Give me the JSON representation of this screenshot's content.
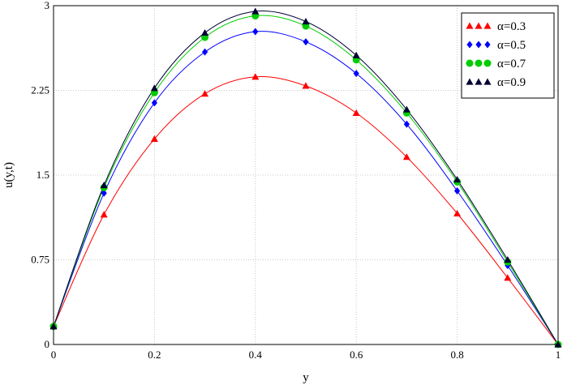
{
  "chart_data": {
    "type": "line",
    "xlabel": "y",
    "ylabel": "u(y,t)",
    "xlim": [
      0,
      1
    ],
    "ylim": [
      0,
      3
    ],
    "x_ticks": [
      "0",
      "0.2",
      "0.4",
      "0.6",
      "0.8",
      "1"
    ],
    "x_tick_values": [
      0,
      0.2,
      0.4,
      0.6,
      0.8,
      1
    ],
    "y_ticks": [
      "0",
      "0.75",
      "1.5",
      "2.25",
      "3"
    ],
    "y_tick_values": [
      0,
      0.75,
      1.5,
      2.25,
      3
    ],
    "grid": true,
    "legend_position": "top-right",
    "x": [
      0,
      0.1,
      0.2,
      0.3,
      0.4,
      0.5,
      0.6,
      0.7,
      0.8,
      0.9,
      1.0
    ],
    "series": [
      {
        "name": "α=0.3",
        "color": "#ff0000",
        "marker": "triangle",
        "values": [
          0.16,
          1.15,
          1.82,
          2.22,
          2.37,
          2.29,
          2.05,
          1.66,
          1.16,
          0.59,
          0.0
        ]
      },
      {
        "name": "α=0.5",
        "color": "#0000ff",
        "marker": "diamond",
        "values": [
          0.16,
          1.34,
          2.14,
          2.59,
          2.77,
          2.68,
          2.4,
          1.95,
          1.36,
          0.7,
          0.0
        ]
      },
      {
        "name": "α=0.7",
        "color": "#00cc00",
        "marker": "circle",
        "values": [
          0.16,
          1.39,
          2.23,
          2.72,
          2.91,
          2.82,
          2.52,
          2.05,
          1.44,
          0.73,
          0.0
        ]
      },
      {
        "name": "α=0.9",
        "color": "#000033",
        "marker": "triangle",
        "values": [
          0.16,
          1.41,
          2.27,
          2.76,
          2.95,
          2.86,
          2.56,
          2.08,
          1.46,
          0.75,
          0.0
        ]
      }
    ]
  }
}
